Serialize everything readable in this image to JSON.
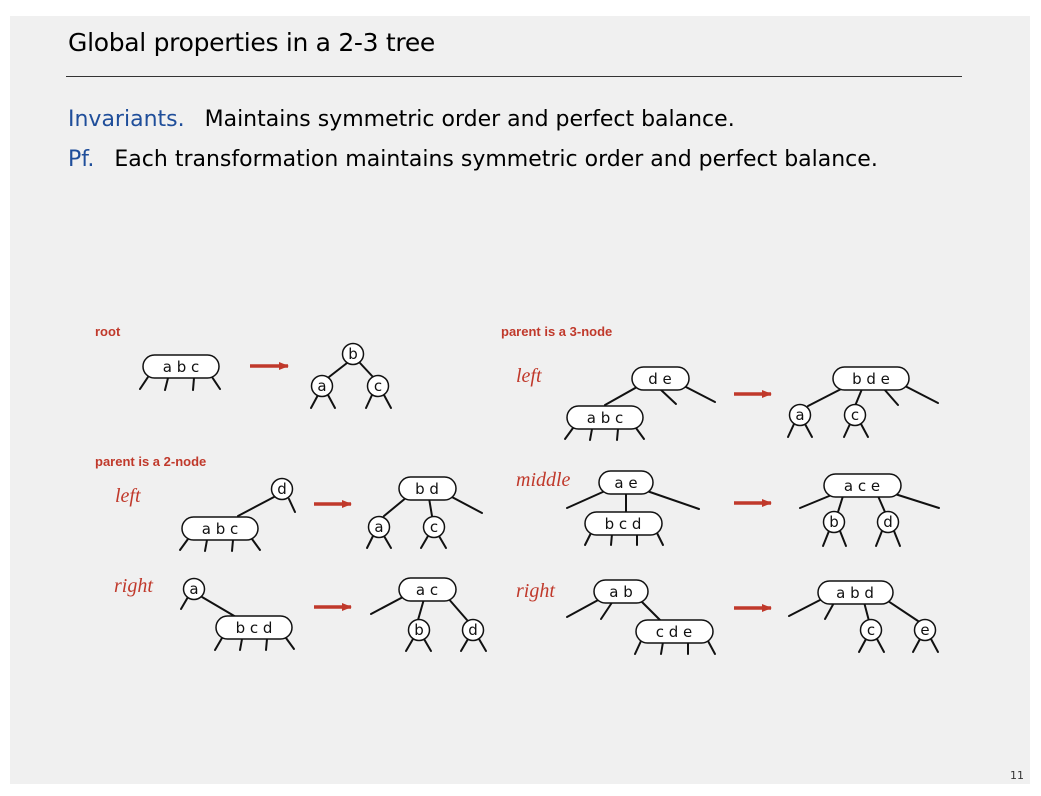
{
  "slide": {
    "title": "Global properties in a 2-3 tree",
    "invariants_label": "Invariants.",
    "invariants_text": "Maintains symmetric order and perfect balance.",
    "pf_label": "Pf.",
    "pf_text": "Each transformation maintains symmetric order and perfect balance.",
    "page_number": "11"
  },
  "diagram": {
    "heading_root": "root",
    "heading_parent2": "parent is a 2-node",
    "heading_parent3": "parent is a 3-node",
    "case_left": "left",
    "case_right": "right",
    "case_middle": "middle",
    "accent_color": "#c0392b",
    "nodes": {
      "abc": "a b c",
      "bcd": "b c d",
      "cde": "c d e",
      "bd": "b d",
      "ac": "a c",
      "de": "d e",
      "bde": "b d e",
      "ae": "a e",
      "ace": "a c e",
      "ab": "a b",
      "abd": "a b d",
      "a": "a",
      "b": "b",
      "c": "c",
      "d": "d",
      "e": "e"
    }
  }
}
